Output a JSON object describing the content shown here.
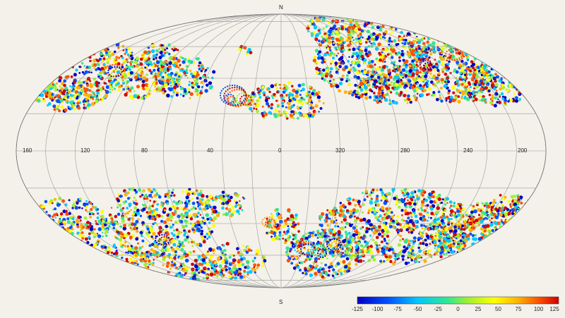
{
  "map": {
    "projection": "Mollweide (Aitoff-like) all-sky",
    "north_label": "N",
    "south_label": "S",
    "longitude_labels": [
      "160",
      "120",
      "80",
      "40",
      "0",
      "320",
      "280",
      "240",
      "200"
    ],
    "colorbar": {
      "ticks": [
        "-125",
        "-100",
        "-75",
        "-50",
        "-25",
        "0",
        "25",
        "50",
        "75",
        "100",
        "125"
      ],
      "colors": [
        "#0000c8",
        "#0050ff",
        "#00c8ff",
        "#30e890",
        "#a0f030",
        "#ffff00",
        "#ffb000",
        "#ff5000",
        "#d00000"
      ]
    },
    "background_color": "#f3f1e9",
    "grid_color": "#9a9a9a"
  }
}
